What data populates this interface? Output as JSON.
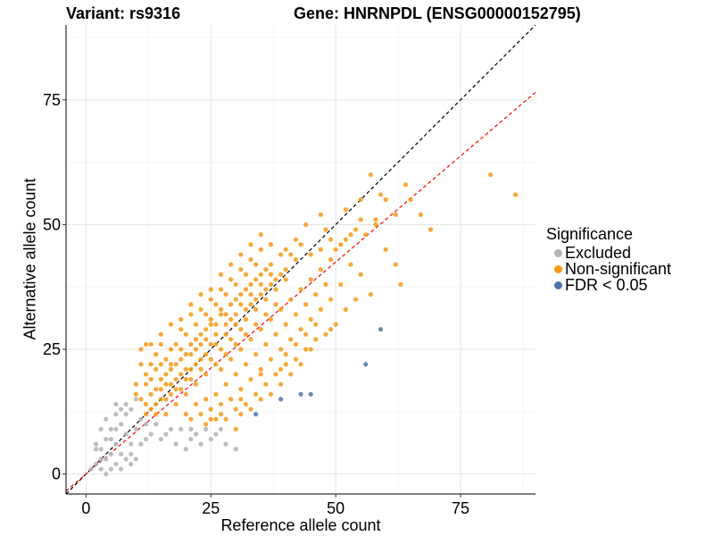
{
  "title_left": "Variant: rs9316",
  "title_right": "Gene: HNRNPDL (ENSG00000152795)",
  "chart_data": {
    "type": "scatter",
    "xlabel": "Reference allele count",
    "ylabel": "Alternative allele count",
    "xlim": [
      -4,
      90
    ],
    "ylim": [
      -4,
      90
    ],
    "xticks": [
      0,
      25,
      50,
      75
    ],
    "yticks": [
      0,
      25,
      50,
      75
    ],
    "grid": true,
    "legend_title": "Significance",
    "legend_position": "right",
    "reference_lines": [
      {
        "style": "dashed",
        "color": "#000000",
        "slope": 1,
        "intercept": 0
      },
      {
        "style": "dashed",
        "color": "#ff0000",
        "slope": 0.85,
        "intercept": 0
      }
    ],
    "series": [
      {
        "name": "Excluded",
        "color": "#b3b3b3",
        "points": [
          [
            2,
            2
          ],
          [
            3,
            1
          ],
          [
            4,
            3
          ],
          [
            3,
            5
          ],
          [
            5,
            4
          ],
          [
            6,
            2
          ],
          [
            2,
            5
          ],
          [
            4,
            7
          ],
          [
            6,
            6
          ],
          [
            7,
            4
          ],
          [
            8,
            8
          ],
          [
            5,
            9
          ],
          [
            3,
            9
          ],
          [
            7,
            10
          ],
          [
            9,
            6
          ],
          [
            8,
            12
          ],
          [
            10,
            9
          ],
          [
            6,
            12
          ],
          [
            9,
            13
          ],
          [
            11,
            11
          ],
          [
            12,
            7
          ],
          [
            4,
            11
          ],
          [
            2,
            6
          ],
          [
            5,
            1
          ],
          [
            8,
            3
          ],
          [
            13,
            8
          ],
          [
            15,
            7
          ],
          [
            18,
            6
          ],
          [
            22,
            8
          ],
          [
            17,
            9
          ],
          [
            20,
            5
          ],
          [
            25,
            7
          ],
          [
            28,
            6
          ],
          [
            30,
            5
          ],
          [
            27,
            9
          ],
          [
            24,
            9
          ],
          [
            14,
            10
          ],
          [
            16,
            8
          ],
          [
            19,
            9
          ],
          [
            21,
            7
          ],
          [
            23,
            6
          ],
          [
            9,
            2
          ],
          [
            7,
            13
          ],
          [
            5,
            7
          ],
          [
            3,
            3
          ],
          [
            6,
            9
          ],
          [
            11,
            6
          ],
          [
            10,
            3
          ],
          [
            4,
            0
          ],
          [
            1,
            1
          ],
          [
            12,
            10
          ],
          [
            8,
            14
          ],
          [
            10,
            15
          ],
          [
            6,
            14
          ],
          [
            7,
            1
          ],
          [
            9,
            4
          ],
          [
            26,
            8
          ],
          [
            21,
            9
          ]
        ]
      },
      {
        "name": "Non-significant",
        "color": "#f59a16",
        "points": [
          [
            10,
            18
          ],
          [
            11,
            15
          ],
          [
            12,
            14
          ],
          [
            13,
            16
          ],
          [
            14,
            12
          ],
          [
            15,
            17
          ],
          [
            16,
            20
          ],
          [
            17,
            18
          ],
          [
            18,
            22
          ],
          [
            19,
            20
          ],
          [
            20,
            24
          ],
          [
            21,
            21
          ],
          [
            22,
            25
          ],
          [
            23,
            23
          ],
          [
            24,
            27
          ],
          [
            25,
            26
          ],
          [
            26,
            28
          ],
          [
            27,
            25
          ],
          [
            28,
            30
          ],
          [
            29,
            27
          ],
          [
            30,
            32
          ],
          [
            31,
            29
          ],
          [
            32,
            31
          ],
          [
            33,
            34
          ],
          [
            34,
            33
          ],
          [
            35,
            36
          ],
          [
            36,
            35
          ],
          [
            37,
            38
          ],
          [
            38,
            37
          ],
          [
            39,
            40
          ],
          [
            40,
            39
          ],
          [
            12,
            20
          ],
          [
            14,
            21
          ],
          [
            16,
            23
          ],
          [
            18,
            26
          ],
          [
            20,
            28
          ],
          [
            22,
            30
          ],
          [
            24,
            32
          ],
          [
            26,
            34
          ],
          [
            28,
            36
          ],
          [
            30,
            38
          ],
          [
            32,
            40
          ],
          [
            34,
            42
          ],
          [
            16,
            12
          ],
          [
            18,
            14
          ],
          [
            20,
            16
          ],
          [
            22,
            18
          ],
          [
            24,
            20
          ],
          [
            26,
            22
          ],
          [
            28,
            24
          ],
          [
            30,
            26
          ],
          [
            32,
            28
          ],
          [
            34,
            30
          ],
          [
            36,
            32
          ],
          [
            38,
            34
          ],
          [
            40,
            30
          ],
          [
            42,
            32
          ],
          [
            44,
            34
          ],
          [
            46,
            36
          ],
          [
            48,
            38
          ],
          [
            14,
            24
          ],
          [
            15,
            26
          ],
          [
            17,
            25
          ],
          [
            19,
            29
          ],
          [
            21,
            32
          ],
          [
            23,
            33
          ],
          [
            25,
            35
          ],
          [
            27,
            37
          ],
          [
            29,
            39
          ],
          [
            31,
            41
          ],
          [
            33,
            43
          ],
          [
            35,
            45
          ],
          [
            37,
            46
          ],
          [
            20,
            12
          ],
          [
            22,
            14
          ],
          [
            24,
            15
          ],
          [
            26,
            16
          ],
          [
            28,
            18
          ],
          [
            30,
            20
          ],
          [
            32,
            22
          ],
          [
            34,
            24
          ],
          [
            36,
            26
          ],
          [
            38,
            28
          ],
          [
            40,
            24
          ],
          [
            42,
            26
          ],
          [
            44,
            28
          ],
          [
            46,
            30
          ],
          [
            11,
            25
          ],
          [
            12,
            26
          ],
          [
            13,
            26
          ],
          [
            15,
            22
          ],
          [
            17,
            21
          ],
          [
            19,
            17
          ],
          [
            21,
            19
          ],
          [
            23,
            21
          ],
          [
            25,
            23
          ],
          [
            27,
            21
          ],
          [
            29,
            23
          ],
          [
            31,
            25
          ],
          [
            33,
            27
          ],
          [
            35,
            29
          ],
          [
            37,
            31
          ],
          [
            39,
            33
          ],
          [
            41,
            35
          ],
          [
            43,
            37
          ],
          [
            45,
            39
          ],
          [
            47,
            41
          ],
          [
            49,
            43
          ],
          [
            50,
            45
          ],
          [
            52,
            47
          ],
          [
            54,
            49
          ],
          [
            56,
            48
          ],
          [
            58,
            50
          ],
          [
            60,
            45
          ],
          [
            62,
            42
          ],
          [
            55,
            40
          ],
          [
            53,
            42
          ],
          [
            51,
            38
          ],
          [
            49,
            35
          ],
          [
            47,
            33
          ],
          [
            45,
            31
          ],
          [
            43,
            29
          ],
          [
            41,
            27
          ],
          [
            39,
            25
          ],
          [
            37,
            23
          ],
          [
            35,
            21
          ],
          [
            33,
            19
          ],
          [
            31,
            17
          ],
          [
            29,
            15
          ],
          [
            27,
            14
          ],
          [
            25,
            13
          ],
          [
            23,
            12
          ],
          [
            21,
            11
          ],
          [
            40,
            45
          ],
          [
            42,
            47
          ],
          [
            44,
            50
          ],
          [
            47,
            52
          ],
          [
            48,
            49
          ],
          [
            52,
            53
          ],
          [
            55,
            55
          ],
          [
            57,
            60
          ],
          [
            60,
            55
          ],
          [
            63,
            38
          ],
          [
            57,
            36
          ],
          [
            50,
            30
          ],
          [
            52,
            33
          ],
          [
            54,
            35
          ],
          [
            44,
            25
          ],
          [
            46,
            27
          ],
          [
            48,
            28
          ],
          [
            36,
            18
          ],
          [
            34,
            16
          ],
          [
            32,
            14
          ],
          [
            30,
            13
          ],
          [
            38,
            20
          ],
          [
            40,
            22
          ],
          [
            42,
            23
          ],
          [
            14,
            14
          ],
          [
            16,
            15
          ],
          [
            18,
            17
          ],
          [
            20,
            19
          ],
          [
            22,
            22
          ],
          [
            24,
            24
          ],
          [
            26,
            26
          ],
          [
            28,
            28
          ],
          [
            30,
            30
          ],
          [
            32,
            33
          ],
          [
            34,
            35
          ],
          [
            36,
            37
          ],
          [
            38,
            39
          ],
          [
            40,
            41
          ],
          [
            42,
            43
          ],
          [
            15,
            19
          ],
          [
            17,
            16
          ],
          [
            19,
            23
          ],
          [
            21,
            26
          ],
          [
            23,
            28
          ],
          [
            25,
            30
          ],
          [
            27,
            32
          ],
          [
            29,
            34
          ],
          [
            31,
            36
          ],
          [
            33,
            38
          ],
          [
            35,
            40
          ],
          [
            37,
            42
          ],
          [
            39,
            44
          ],
          [
            13,
            22
          ],
          [
            15,
            28
          ],
          [
            17,
            30
          ],
          [
            19,
            31
          ],
          [
            21,
            34
          ],
          [
            23,
            36
          ],
          [
            25,
            37
          ],
          [
            27,
            40
          ],
          [
            29,
            42
          ],
          [
            31,
            44
          ],
          [
            33,
            46
          ],
          [
            35,
            48
          ],
          [
            12,
            18
          ],
          [
            13,
            19
          ],
          [
            11,
            22
          ],
          [
            10,
            16
          ],
          [
            12,
            12
          ],
          [
            13,
            13
          ],
          [
            14,
            17
          ],
          [
            15,
            15
          ],
          [
            16,
            18
          ],
          [
            17,
            22
          ],
          [
            18,
            19
          ],
          [
            19,
            25
          ],
          [
            20,
            21
          ],
          [
            21,
            24
          ],
          [
            22,
            27
          ],
          [
            23,
            26
          ],
          [
            24,
            29
          ],
          [
            25,
            31
          ],
          [
            26,
            30
          ],
          [
            27,
            33
          ],
          [
            28,
            32
          ],
          [
            29,
            31
          ],
          [
            30,
            35
          ],
          [
            31,
            34
          ],
          [
            32,
            37
          ],
          [
            33,
            36
          ],
          [
            34,
            39
          ],
          [
            35,
            38
          ],
          [
            36,
            41
          ],
          [
            37,
            40
          ],
          [
            41,
            44
          ],
          [
            43,
            46
          ],
          [
            45,
            44
          ],
          [
            47,
            45
          ],
          [
            49,
            47
          ],
          [
            51,
            46
          ],
          [
            53,
            48
          ],
          [
            55,
            51
          ],
          [
            81,
            60
          ],
          [
            86,
            56
          ],
          [
            62,
            52
          ],
          [
            59,
            56
          ],
          [
            58,
            51
          ],
          [
            64,
            58
          ],
          [
            65,
            55
          ],
          [
            67,
            52
          ],
          [
            69,
            49
          ],
          [
            49,
            29
          ],
          [
            45,
            25
          ],
          [
            43,
            22
          ],
          [
            41,
            20
          ],
          [
            39,
            18
          ],
          [
            37,
            16
          ],
          [
            35,
            15
          ],
          [
            33,
            13
          ],
          [
            31,
            12
          ],
          [
            28,
            11
          ],
          [
            26,
            11
          ],
          [
            24,
            10
          ],
          [
            30,
            9
          ],
          [
            27,
            12
          ],
          [
            25,
            11
          ],
          [
            31,
            15
          ],
          [
            35,
            20
          ],
          [
            39,
            21
          ]
        ]
      },
      {
        "name": "FDR < 0.05",
        "color": "#4a76a6",
        "points": [
          [
            34,
            12
          ],
          [
            39,
            15
          ],
          [
            43,
            16
          ],
          [
            45,
            16
          ],
          [
            56,
            22
          ],
          [
            59,
            29
          ]
        ]
      }
    ]
  }
}
